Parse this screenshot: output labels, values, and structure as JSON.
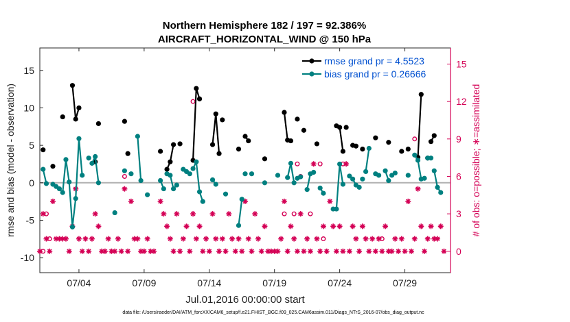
{
  "chart_data": {
    "type": "line",
    "title": "Northern Hemisphere 182 / 197 = 92.386%",
    "subtitle": "AIRCRAFT_HORIZONTAL_WIND @ 150 hPa",
    "xlabel": "Jul.01,2016 00:00:00 start",
    "ylabel": "rmse and bias (model - observation)",
    "ylabel_right": "# of obs: o=possible; ∗=assimilated",
    "footer": "data file: /Users/raeder/DAI/ATM_forcXX/CAM6_setup/f.e21.FHIST_BGC.f09_025.CAM6assim.011/Diags_NTrS_2016-07/obs_diag_output.nc",
    "xlim": [
      1.0,
      32.5
    ],
    "ylim": [
      -12,
      18
    ],
    "ylim_right": [
      -1.714,
      16.29
    ],
    "x_ticks": [
      4,
      9,
      14,
      19,
      24,
      29
    ],
    "x_tick_labels": [
      "07/04",
      "07/09",
      "07/14",
      "07/19",
      "07/24",
      "07/29"
    ],
    "y_ticks": [
      -10,
      -5,
      0,
      5,
      10,
      15
    ],
    "y_tick_labels": [
      "-10",
      "-5",
      "0",
      "5",
      "10",
      "15"
    ],
    "y_right_ticks": [
      0,
      3,
      6,
      9,
      12,
      15
    ],
    "y_right_tick_labels": [
      "0",
      "3",
      "6",
      "9",
      "12",
      "15"
    ],
    "legend": [
      "rmse grand pr = 4.5523",
      "bias grand pr = 0.26666"
    ],
    "colors": {
      "rmse": "#000000",
      "bias": "#008080",
      "obs": "#d40055",
      "zero_line": "#b0b0b0"
    },
    "series": [
      {
        "name": "rmse",
        "segments": [
          [
            [
              1.25,
              4.4
            ]
          ],
          [
            [
              2.0,
              2.2
            ]
          ],
          [
            [
              2.75,
              8.8
            ]
          ],
          [
            [
              3.5,
              13.0
            ],
            [
              3.75,
              8.5
            ],
            [
              4.0,
              10.0
            ]
          ],
          [
            [
              5.25,
              2.8
            ]
          ],
          [
            [
              5.5,
              7.9
            ]
          ],
          [
            [
              7.5,
              8.2
            ]
          ],
          [
            [
              7.75,
              3.9
            ]
          ],
          [
            [
              10.25,
              4.2
            ]
          ],
          [
            [
              10.75,
              1.8
            ],
            [
              11.0,
              2.8
            ],
            [
              11.25,
              5.1
            ]
          ],
          [
            [
              11.75,
              5.2
            ]
          ],
          [
            [
              12.75,
              3.0
            ],
            [
              13.0,
              12.6
            ],
            [
              13.25,
              11.2
            ]
          ],
          [
            [
              14.25,
              5.1
            ],
            [
              14.5,
              9.2
            ],
            [
              14.75,
              3.9
            ]
          ],
          [
            [
              15.0,
              8.4
            ]
          ],
          [
            [
              16.25,
              4.5
            ]
          ],
          [
            [
              16.75,
              6.2
            ],
            [
              17.0,
              5.6
            ]
          ],
          [
            [
              18.25,
              3.2
            ]
          ],
          [
            [
              19.75,
              9.4
            ],
            [
              20.0,
              5.7
            ]
          ],
          [
            [
              20.25,
              5.6
            ]
          ],
          [
            [
              20.75,
              8.5
            ]
          ],
          [
            [
              21.25,
              7.0
            ]
          ],
          [
            [
              22.25,
              5.2
            ]
          ],
          [
            [
              23.75,
              7.6
            ],
            [
              24.0,
              7.4
            ],
            [
              24.25,
              4.2
            ]
          ],
          [
            [
              24.5,
              7.4
            ]
          ],
          [
            [
              25.0,
              5.0
            ],
            [
              25.25,
              4.9
            ]
          ],
          [
            [
              25.75,
              4.5
            ]
          ],
          [
            [
              26.75,
              6.0
            ]
          ],
          [
            [
              27.75,
              5.4
            ]
          ],
          [
            [
              28.75,
              4.2
            ]
          ],
          [
            [
              29.25,
              4.5
            ]
          ],
          [
            [
              30.0,
              3.4
            ],
            [
              30.25,
              11.8
            ]
          ],
          [
            [
              30.75,
              3.3
            ]
          ],
          [
            [
              31.0,
              5.5
            ],
            [
              31.25,
              6.3
            ]
          ]
        ]
      },
      {
        "name": "bias",
        "segments": [
          [
            [
              1.25,
              1.8
            ],
            [
              1.5,
              -0.1
            ]
          ],
          [
            [
              2.0,
              -0.2
            ],
            [
              2.25,
              -0.5
            ],
            [
              2.5,
              -0.8
            ],
            [
              2.75,
              -1.3
            ],
            [
              3.0,
              3.1
            ],
            [
              3.25,
              0.1
            ],
            [
              3.5,
              -5.9
            ],
            [
              3.75,
              -2.1
            ],
            [
              4.0,
              5.9
            ],
            [
              4.25,
              1.0
            ]
          ],
          [
            [
              4.75,
              3.3
            ]
          ],
          [
            [
              5.0,
              2.6
            ],
            [
              5.25,
              3.5
            ],
            [
              5.5,
              0.0
            ]
          ],
          [
            [
              6.75,
              -4.0
            ]
          ],
          [
            [
              7.5,
              1.6
            ]
          ],
          [
            [
              8.0,
              1.2
            ]
          ],
          [
            [
              8.5,
              6.2
            ],
            [
              8.75,
              0.3
            ]
          ],
          [
            [
              9.25,
              -1.6
            ]
          ],
          [
            [
              10.25,
              0.3
            ],
            [
              10.5,
              -0.8
            ]
          ],
          [
            [
              10.75,
              1.2
            ],
            [
              11.0,
              1.0
            ],
            [
              11.25,
              -0.8
            ],
            [
              11.5,
              -0.3
            ]
          ],
          [
            [
              12.0,
              1.8
            ]
          ],
          [
            [
              12.25,
              1.5
            ],
            [
              12.5,
              1.2
            ]
          ],
          [
            [
              12.75,
              1.9
            ],
            [
              13.0,
              2.8
            ],
            [
              13.25,
              -1.2
            ],
            [
              13.5,
              -2.5
            ]
          ],
          [
            [
              14.25,
              0.4
            ],
            [
              14.5,
              -0.2
            ]
          ],
          [
            [
              15.25,
              -1.5
            ]
          ],
          [
            [
              16.25,
              -5.7
            ],
            [
              16.5,
              -2.2
            ]
          ],
          [
            [
              16.75,
              1.2
            ]
          ],
          [
            [
              17.25,
              1.2
            ]
          ],
          [
            [
              18.25,
              0.0
            ]
          ],
          [
            [
              19.25,
              1.0
            ]
          ],
          [
            [
              20.0,
              0.7
            ],
            [
              20.25,
              2.6
            ],
            [
              20.5,
              0.0
            ]
          ],
          [
            [
              20.75,
              0.6
            ],
            [
              21.0,
              0.8
            ]
          ],
          [
            [
              21.5,
              -0.9
            ],
            [
              21.75,
              1.2
            ],
            [
              22.0,
              1.4
            ]
          ],
          [
            [
              22.5,
              -0.7
            ],
            [
              22.75,
              -1.4
            ]
          ],
          [
            [
              23.5,
              -3.5
            ],
            [
              23.75,
              -3.5
            ],
            [
              24.0,
              2.5
            ],
            [
              24.25,
              -0.2
            ]
          ],
          [
            [
              24.75,
              0.9
            ],
            [
              25.0,
              0.5
            ],
            [
              25.25,
              -0.3
            ],
            [
              25.5,
              -0.6
            ]
          ],
          [
            [
              25.75,
              0.5
            ]
          ],
          [
            [
              26.0,
              1.5
            ],
            [
              26.25,
              4.6
            ]
          ],
          [
            [
              26.75,
              1.2
            ],
            [
              27.0,
              1.0
            ]
          ],
          [
            [
              27.5,
              1.6
            ],
            [
              27.75,
              0.3
            ]
          ],
          [
            [
              28.0,
              1.0
            ],
            [
              28.25,
              1.3
            ]
          ],
          [
            [
              29.25,
              1.0
            ]
          ],
          [
            [
              29.75,
              3.7
            ],
            [
              30.0,
              3.0
            ],
            [
              30.25,
              0.5
            ],
            [
              30.5,
              0.6
            ]
          ],
          [
            [
              30.75,
              3.3
            ],
            [
              31.0,
              3.3
            ]
          ],
          [
            [
              31.25,
              1.6
            ],
            [
              31.5,
              -0.6
            ],
            [
              31.75,
              -1.3
            ]
          ]
        ]
      }
    ],
    "obs_possible": [
      {
        "x": 1.25,
        "n": 0
      },
      {
        "x": 1.5,
        "n": 3
      },
      {
        "x": 1.75,
        "n": 1
      },
      {
        "x": 7.5,
        "n": 6
      },
      {
        "x": 12.75,
        "n": 12
      },
      {
        "x": 19.75,
        "n": 3
      },
      {
        "x": 20.5,
        "n": 3
      },
      {
        "x": 20.75,
        "n": 7
      },
      {
        "x": 21.0,
        "n": 6
      },
      {
        "x": 21.75,
        "n": 3
      },
      {
        "x": 22.5,
        "n": 7
      },
      {
        "x": 22.75,
        "n": 1
      },
      {
        "x": 24.25,
        "n": 7
      },
      {
        "x": 27.25,
        "n": 1
      },
      {
        "x": 29.75,
        "n": 9
      }
    ],
    "obs_assimilated": [
      {
        "x": 1.0,
        "n": 0
      },
      {
        "x": 1.25,
        "n": 3
      },
      {
        "x": 1.5,
        "n": 1
      },
      {
        "x": 1.75,
        "n": 0
      },
      {
        "x": 2.0,
        "n": 4
      },
      {
        "x": 2.25,
        "n": 1
      },
      {
        "x": 2.5,
        "n": 1
      },
      {
        "x": 2.75,
        "n": 1
      },
      {
        "x": 3.0,
        "n": 1
      },
      {
        "x": 3.25,
        "n": 0
      },
      {
        "x": 3.5,
        "n": 2
      },
      {
        "x": 3.75,
        "n": 5
      },
      {
        "x": 4.0,
        "n": 1
      },
      {
        "x": 4.25,
        "n": 0
      },
      {
        "x": 4.5,
        "n": 1
      },
      {
        "x": 4.75,
        "n": 0
      },
      {
        "x": 5.0,
        "n": 1
      },
      {
        "x": 5.25,
        "n": 3
      },
      {
        "x": 5.5,
        "n": 2
      },
      {
        "x": 5.75,
        "n": 0
      },
      {
        "x": 6.0,
        "n": 0
      },
      {
        "x": 6.25,
        "n": 1
      },
      {
        "x": 6.5,
        "n": 0
      },
      {
        "x": 6.75,
        "n": 0
      },
      {
        "x": 7.0,
        "n": 1
      },
      {
        "x": 7.25,
        "n": 0
      },
      {
        "x": 7.5,
        "n": 5
      },
      {
        "x": 7.75,
        "n": 0
      },
      {
        "x": 8.0,
        "n": 4
      },
      {
        "x": 8.25,
        "n": 1
      },
      {
        "x": 8.5,
        "n": 1
      },
      {
        "x": 8.75,
        "n": 0
      },
      {
        "x": 9.0,
        "n": 0
      },
      {
        "x": 9.25,
        "n": 1
      },
      {
        "x": 9.5,
        "n": 0
      },
      {
        "x": 9.75,
        "n": 0
      },
      {
        "x": 10.25,
        "n": 4
      },
      {
        "x": 10.5,
        "n": 3
      },
      {
        "x": 10.75,
        "n": 2
      },
      {
        "x": 11.0,
        "n": 1
      },
      {
        "x": 11.25,
        "n": 0
      },
      {
        "x": 11.5,
        "n": 3
      },
      {
        "x": 11.75,
        "n": 0
      },
      {
        "x": 12.0,
        "n": 1
      },
      {
        "x": 12.25,
        "n": 2
      },
      {
        "x": 12.5,
        "n": 0
      },
      {
        "x": 12.75,
        "n": 3
      },
      {
        "x": 13.0,
        "n": 1
      },
      {
        "x": 13.25,
        "n": 2
      },
      {
        "x": 13.5,
        "n": 0
      },
      {
        "x": 13.75,
        "n": 1
      },
      {
        "x": 14.0,
        "n": 0
      },
      {
        "x": 14.25,
        "n": 3
      },
      {
        "x": 14.5,
        "n": 1
      },
      {
        "x": 14.75,
        "n": 0
      },
      {
        "x": 15.0,
        "n": 1
      },
      {
        "x": 15.25,
        "n": 0
      },
      {
        "x": 15.5,
        "n": 3
      },
      {
        "x": 15.75,
        "n": 1
      },
      {
        "x": 16.0,
        "n": 0
      },
      {
        "x": 16.25,
        "n": 1
      },
      {
        "x": 16.5,
        "n": 0
      },
      {
        "x": 16.75,
        "n": 4
      },
      {
        "x": 17.0,
        "n": 1
      },
      {
        "x": 17.25,
        "n": 0
      },
      {
        "x": 17.5,
        "n": 3
      },
      {
        "x": 17.75,
        "n": 1
      },
      {
        "x": 18.0,
        "n": 0
      },
      {
        "x": 18.25,
        "n": 2
      },
      {
        "x": 18.5,
        "n": 0
      },
      {
        "x": 18.75,
        "n": 0
      },
      {
        "x": 19.0,
        "n": 0
      },
      {
        "x": 19.25,
        "n": 0
      },
      {
        "x": 19.5,
        "n": 1
      },
      {
        "x": 19.75,
        "n": 4
      },
      {
        "x": 20.0,
        "n": 0
      },
      {
        "x": 20.25,
        "n": 2
      },
      {
        "x": 20.5,
        "n": 1
      },
      {
        "x": 20.75,
        "n": 0
      },
      {
        "x": 21.0,
        "n": 3
      },
      {
        "x": 21.25,
        "n": 0
      },
      {
        "x": 21.5,
        "n": 1
      },
      {
        "x": 21.75,
        "n": 0
      },
      {
        "x": 22.0,
        "n": 7
      },
      {
        "x": 22.25,
        "n": 1
      },
      {
        "x": 22.5,
        "n": 0
      },
      {
        "x": 22.75,
        "n": 2
      },
      {
        "x": 23.0,
        "n": 0
      },
      {
        "x": 23.25,
        "n": 4
      },
      {
        "x": 23.5,
        "n": 2
      },
      {
        "x": 23.75,
        "n": 0
      },
      {
        "x": 24.0,
        "n": 2
      },
      {
        "x": 24.25,
        "n": 0
      },
      {
        "x": 24.5,
        "n": 7
      },
      {
        "x": 24.75,
        "n": 0
      },
      {
        "x": 25.0,
        "n": 2
      },
      {
        "x": 25.25,
        "n": 1
      },
      {
        "x": 25.5,
        "n": 0
      },
      {
        "x": 25.75,
        "n": 2
      },
      {
        "x": 26.0,
        "n": 1
      },
      {
        "x": 26.25,
        "n": 0
      },
      {
        "x": 26.5,
        "n": 1
      },
      {
        "x": 26.75,
        "n": 0
      },
      {
        "x": 27.0,
        "n": 1
      },
      {
        "x": 27.25,
        "n": 0
      },
      {
        "x": 27.5,
        "n": 2
      },
      {
        "x": 27.75,
        "n": 0
      },
      {
        "x": 28.0,
        "n": 0
      },
      {
        "x": 28.25,
        "n": 1
      },
      {
        "x": 28.5,
        "n": 0
      },
      {
        "x": 28.75,
        "n": 1
      },
      {
        "x": 29.0,
        "n": 0
      },
      {
        "x": 29.25,
        "n": 4
      },
      {
        "x": 29.5,
        "n": 0
      },
      {
        "x": 29.75,
        "n": 1
      },
      {
        "x": 30.0,
        "n": 5
      },
      {
        "x": 30.25,
        "n": 2
      },
      {
        "x": 30.5,
        "n": 0
      },
      {
        "x": 30.75,
        "n": 1
      },
      {
        "x": 31.0,
        "n": 2
      },
      {
        "x": 31.25,
        "n": 1
      },
      {
        "x": 31.5,
        "n": 1
      },
      {
        "x": 31.75,
        "n": 2
      },
      {
        "x": 32.0,
        "n": 0
      }
    ]
  }
}
